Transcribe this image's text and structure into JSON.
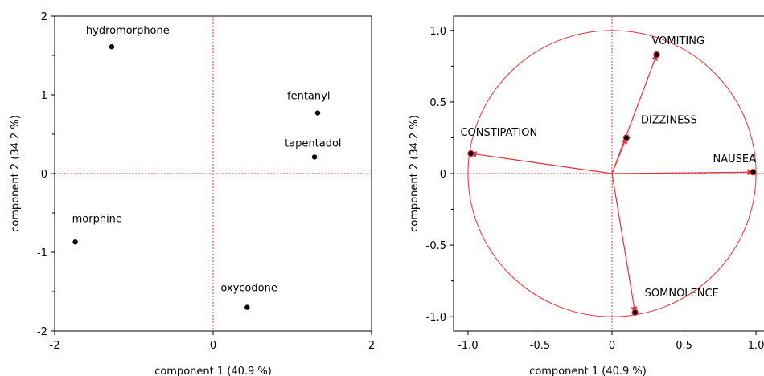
{
  "chart_data": [
    {
      "type": "scatter",
      "xlabel": "component 1  (40.9 %)",
      "ylabel": "component 2  (34.2 %)",
      "xlim": [
        -2,
        2
      ],
      "ylim": [
        -2,
        2
      ],
      "xticks": [
        "-2",
        "0",
        "2"
      ],
      "yticks": [
        "-2",
        "-1",
        "0",
        "1",
        "2"
      ],
      "reference_lines": {
        "x": 0,
        "y": 0,
        "color": "#e8303a",
        "style": "dotted"
      },
      "point_color": "#000000",
      "points": [
        {
          "label": "hydromorphone",
          "x": -1.28,
          "y": 1.61
        },
        {
          "label": "fentanyl",
          "x": 1.32,
          "y": 0.77
        },
        {
          "label": "tapentadol",
          "x": 1.28,
          "y": 0.21
        },
        {
          "label": "morphine",
          "x": -1.74,
          "y": -0.87
        },
        {
          "label": "oxycodone",
          "x": 0.43,
          "y": -1.7
        }
      ]
    },
    {
      "type": "scatter",
      "subtype": "correlation-circle",
      "xlabel": "component 1  (40.9 %)",
      "ylabel": "component 2  (34.2 %)",
      "xlim": [
        -1.1,
        1.1
      ],
      "ylim": [
        -1.1,
        1.1
      ],
      "xticks": [
        "-1.0",
        "-0.5",
        "0",
        "0.5",
        "1.0"
      ],
      "yticks": [
        "-1.0",
        "-0.5",
        "0",
        "0.5",
        "1.0"
      ],
      "unit_circle": true,
      "reference_lines": {
        "x": 0,
        "y": 0,
        "color": "#e8303a",
        "style": "dotted"
      },
      "arrow_color": "#e8303a",
      "points": [
        {
          "label": "VOMITING",
          "x": 0.31,
          "y": 0.83
        },
        {
          "label": "DIZZINESS",
          "x": 0.1,
          "y": 0.25
        },
        {
          "label": "CONSTIPATION",
          "x": -0.98,
          "y": 0.14
        },
        {
          "label": "NAUSEA",
          "x": 0.98,
          "y": 0.01
        },
        {
          "label": "SOMNOLENCE",
          "x": 0.16,
          "y": -0.97
        }
      ]
    }
  ]
}
